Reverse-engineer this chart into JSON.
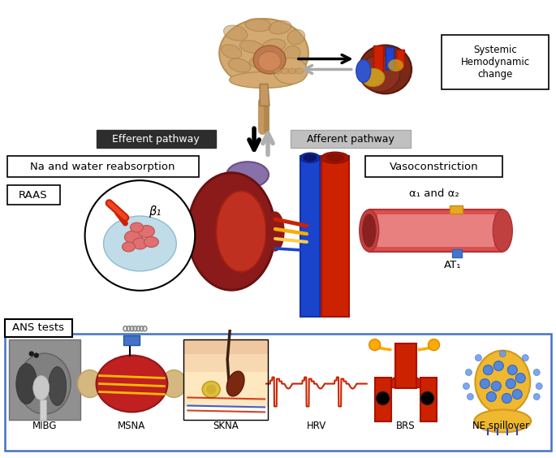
{
  "bg_color": "#ffffff",
  "efferent_label": "Efferent pathway",
  "afferent_label": "Afferent pathway",
  "systemic_label": "Systemic\nHemodynamic\nchange",
  "na_water_label": "Na and water reabsorption",
  "vasoconstriction_label": "Vasoconstriction",
  "raas_label": "RAAS",
  "beta1_label": "β₁",
  "alpha_label": "α₁ and α₂",
  "at1_label": "AT₁",
  "ans_label": "ANS tests",
  "bottom_labels": [
    "MIBG",
    "MSNA",
    "SKNA",
    "HRV",
    "BRS",
    "NE spillover"
  ],
  "efferent_bg": "#2d2d2d",
  "afferent_bg": "#b8b8b8",
  "ans_border": "#4472c4",
  "figure_width": 6.85,
  "figure_height": 5.64,
  "dpi": 100
}
